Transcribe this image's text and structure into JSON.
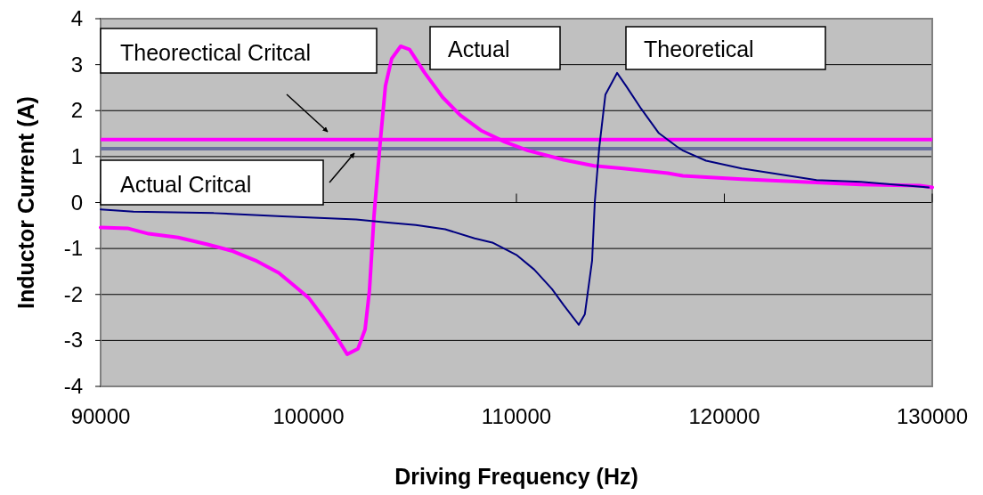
{
  "chart_data": {
    "type": "line",
    "xlabel": "Driving Frequency (Hz)",
    "ylabel": "Inductor Current (A)",
    "xlim": [
      90000,
      130000
    ],
    "xticks": [
      90000,
      100000,
      110000,
      120000,
      130000
    ],
    "ylim": [
      -4,
      4
    ],
    "yticks": [
      -4,
      -3,
      -2,
      -1,
      0,
      1,
      2,
      3,
      4
    ],
    "grid": "y",
    "marker": "none",
    "line_style": "solid",
    "series": [
      {
        "name": "Actual",
        "color": "#ff00ff",
        "x": [
          90000,
          91290,
          92310,
          93730,
          95140,
          96300,
          97450,
          98570,
          99420,
          100020,
          100710,
          101300,
          101860,
          102380,
          102720,
          102930,
          103150,
          103450,
          103700,
          104000,
          104430,
          104860,
          105590,
          106450,
          107300,
          108290,
          109440,
          110560,
          112270,
          113730,
          115140,
          117280,
          118010,
          120840,
          123700,
          126570,
          129400,
          130000
        ],
        "values": [
          -0.54,
          -0.56,
          -0.68,
          -0.76,
          -0.91,
          -1.05,
          -1.26,
          -1.53,
          -1.85,
          -2.08,
          -2.5,
          -2.89,
          -3.3,
          -3.18,
          -2.76,
          -1.92,
          -0.29,
          1.32,
          2.54,
          3.13,
          3.4,
          3.33,
          2.82,
          2.29,
          1.9,
          1.57,
          1.32,
          1.13,
          0.93,
          0.8,
          0.74,
          0.64,
          0.58,
          0.51,
          0.45,
          0.39,
          0.37,
          0.33
        ]
      },
      {
        "name": "Theoretical",
        "color": "#000080",
        "x": [
          90000,
          91580,
          95440,
          98740,
          102290,
          103700,
          105160,
          106570,
          107990,
          108840,
          110000,
          110860,
          111710,
          112270,
          113000,
          113290,
          113640,
          113770,
          113980,
          114280,
          114840,
          115270,
          116000,
          116850,
          117710,
          118010,
          119120,
          120840,
          122290,
          124430,
          126570,
          129830
        ],
        "values": [
          -0.15,
          -0.2,
          -0.23,
          -0.3,
          -0.37,
          -0.43,
          -0.49,
          -0.58,
          -0.78,
          -0.87,
          -1.14,
          -1.46,
          -1.88,
          -2.23,
          -2.66,
          -2.43,
          -1.26,
          0.02,
          1.18,
          2.35,
          2.82,
          2.54,
          2.04,
          1.51,
          1.22,
          1.13,
          0.91,
          0.74,
          0.64,
          0.49,
          0.45,
          0.33
        ]
      }
    ],
    "ref_lines": [
      {
        "axis": "y",
        "value": 1.37,
        "color": "#ff00ff"
      },
      {
        "axis": "y",
        "value": 1.17,
        "color": "#6b70a0"
      }
    ],
    "annotations": [
      "Theorectical Critcal",
      "Actual Critcal"
    ]
  }
}
